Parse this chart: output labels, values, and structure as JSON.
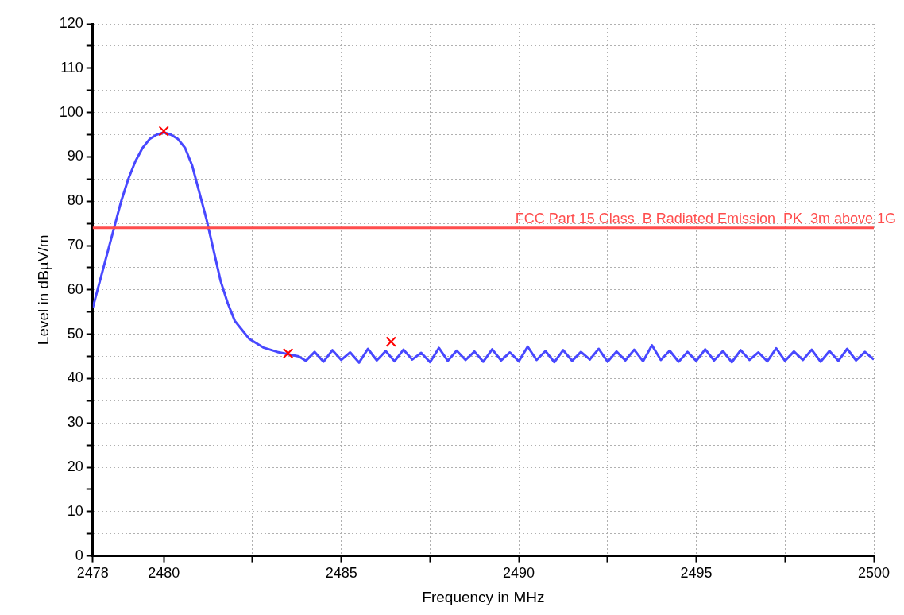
{
  "chart_data": {
    "type": "line",
    "xlabel": "Frequency in MHz",
    "ylabel": "Level in dBµV/m",
    "xlim": [
      2478,
      2500
    ],
    "xticks": [
      2478,
      2480,
      {
        "value": 2482.5,
        "label": null
      },
      2485,
      {
        "value": 2487.5,
        "label": null
      },
      2490,
      {
        "value": 2492.5,
        "label": null
      },
      2495,
      {
        "value": 2497.5,
        "label": null
      },
      2500
    ],
    "ylim": [
      0,
      120
    ],
    "yticks": [
      0,
      {
        "value": 5,
        "label": null
      },
      10,
      {
        "value": 15,
        "label": null
      },
      20,
      {
        "value": 25,
        "label": null
      },
      30,
      {
        "value": 35,
        "label": null
      },
      40,
      {
        "value": 45,
        "label": null
      },
      50,
      {
        "value": 55,
        "label": null
      },
      60,
      {
        "value": 65,
        "label": null
      },
      70,
      {
        "value": 75,
        "label": null
      },
      80,
      {
        "value": 85,
        "label": null
      },
      90,
      {
        "value": 95,
        "label": null
      },
      100,
      {
        "value": 105,
        "label": null
      },
      110,
      {
        "value": 115,
        "label": null
      },
      120
    ],
    "grid": true,
    "ref_lines": [
      {
        "axis": "y",
        "value": 74,
        "label": "FCC Part 15 Class  B Radiated Emission  PK  3m above 1G",
        "color": "#ff4d4d"
      }
    ],
    "series": [
      {
        "color": "#4848ff",
        "marker": "none",
        "x": [
          2478,
          2478.2,
          2478.4,
          2478.6,
          2478.8,
          2479,
          2479.2,
          2479.4,
          2479.6,
          2479.8,
          2480,
          2480.2,
          2480.4,
          2480.6,
          2480.8,
          2481,
          2481.2,
          2481.4,
          2481.6,
          2481.8,
          2482,
          2482.2,
          2482.4,
          2482.6,
          2482.8,
          2483,
          2483.2,
          2483.5,
          2483.8,
          2484,
          2484.25,
          2484.5,
          2484.75,
          2485,
          2485.25,
          2485.5,
          2485.75,
          2486,
          2486.25,
          2486.5,
          2486.75,
          2487,
          2487.25,
          2487.5,
          2487.75,
          2488,
          2488.25,
          2488.5,
          2488.75,
          2489,
          2489.25,
          2489.5,
          2489.75,
          2490,
          2490.25,
          2490.5,
          2490.75,
          2491,
          2491.25,
          2491.5,
          2491.75,
          2492,
          2492.25,
          2492.5,
          2492.75,
          2493,
          2493.25,
          2493.5,
          2493.75,
          2494,
          2494.25,
          2494.5,
          2494.75,
          2495,
          2495.25,
          2495.5,
          2495.75,
          2496,
          2496.25,
          2496.5,
          2496.75,
          2497,
          2497.25,
          2497.5,
          2497.75,
          2498,
          2498.25,
          2498.5,
          2498.75,
          2499,
          2499.25,
          2499.5,
          2499.75,
          2500
        ],
        "values": [
          56,
          62,
          68,
          74,
          80,
          85,
          89,
          92,
          94,
          95,
          95.5,
          95,
          94,
          92,
          88,
          82,
          76,
          69,
          62,
          57,
          53,
          51,
          49,
          48,
          47,
          46.5,
          46,
          45.5,
          45,
          44,
          46,
          43.8,
          46.4,
          44.2,
          45.9,
          43.6,
          46.7,
          44.1,
          46.2,
          43.9,
          46.5,
          44.3,
          45.8,
          43.7,
          46.9,
          44,
          46.3,
          44.2,
          46.1,
          43.8,
          46.6,
          44.1,
          45.9,
          43.9,
          47.2,
          44.2,
          46.2,
          43.7,
          46.4,
          44,
          46,
          44.3,
          46.7,
          43.8,
          46.1,
          44.1,
          46.5,
          43.9,
          47.5,
          44.2,
          46.3,
          43.8,
          46,
          44,
          46.6,
          44.1,
          46.2,
          43.7,
          46.4,
          44.2,
          45.9,
          43.9,
          46.8,
          44,
          46.1,
          44.2,
          46.5,
          43.8,
          46.2,
          44,
          46.7,
          44.1,
          46,
          44.3
        ]
      },
      {
        "type": "scatter",
        "color": "#ff0000",
        "marker": "cross",
        "x": [
          2480,
          2483.5,
          2486.4
        ],
        "values": [
          95.8,
          45.7,
          48.3
        ]
      }
    ]
  }
}
